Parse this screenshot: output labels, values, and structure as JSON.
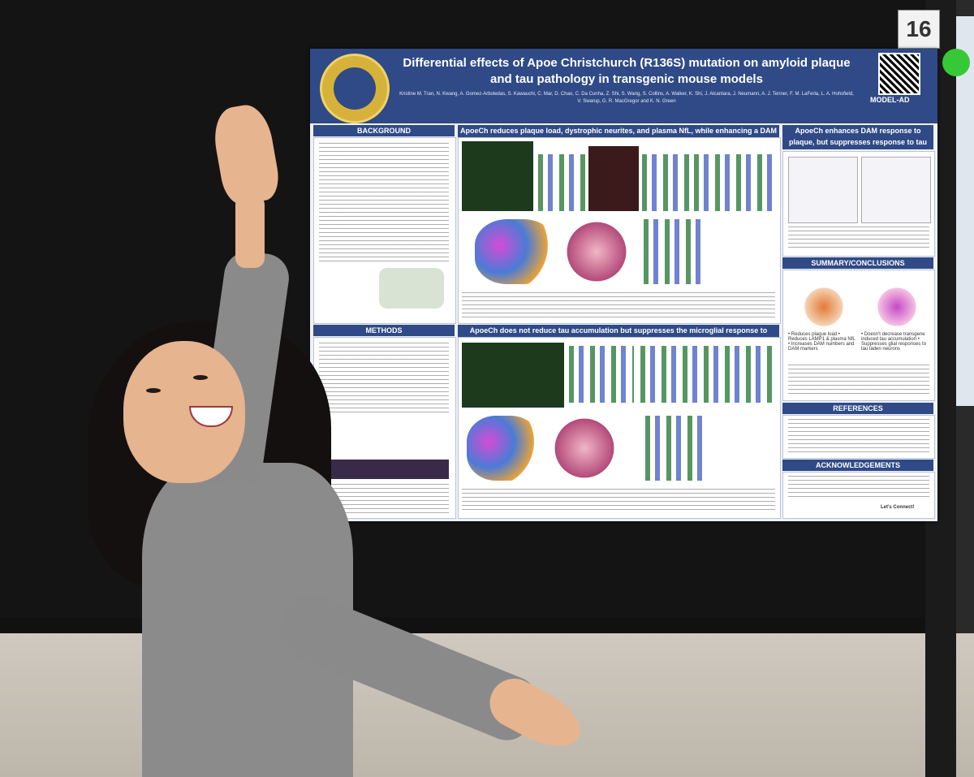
{
  "booth_number": "16",
  "poster": {
    "title_line1": "Differential effects of Apoe Christchurch (R136S) mutation on amyloid plaque",
    "title_line2": "and tau pathology in transgenic mouse models",
    "authors": "Kristine M. Tran, N. Kwang, A. Gomez-Arboledas, S. Kawauchi, C. Mar, D. Chao, C. Da Cunha, Z. Shi, S. Wang, S. Collins, A. Walker, K. Shi, J. Alcantara, J. Neumann, A. J. Tenner, F. M. LaFerla, L. A. Hohsfield, V. Swarup, G. R. MacGregor and K. N. Green",
    "logo_text": "MODEL-AD",
    "sections": {
      "background": "BACKGROUND",
      "methods": "METHODS",
      "results1": "ApoeCh reduces plaque load, dystrophic neurites, and plasma NfL, while enhancing a DAM phenotype",
      "results2": "ApoeCh does not reduce tau accumulation but suppresses the microglial response to tauopathy",
      "right1": "ApoeCh enhances DAM response to plaque, but suppresses response to tau",
      "summary": "SUMMARY/CONCLUSIONS",
      "references": "REFERENCES",
      "acknowledgements": "ACKNOWLEDGEMENTS"
    },
    "summary_left": "• Reduces plaque load • Reduces LAMP1 & plasma NfL • Increases DAM numbers and DAM markers",
    "summary_right": "• Doesn't decrease transgene induced tau accumulation • Suppresses glial responses to tau laden neurons",
    "contact": "Let's Connect!"
  },
  "colors": {
    "poster_header": "#2f4a86",
    "board": "#141414",
    "booth_dot": "#37c837"
  }
}
